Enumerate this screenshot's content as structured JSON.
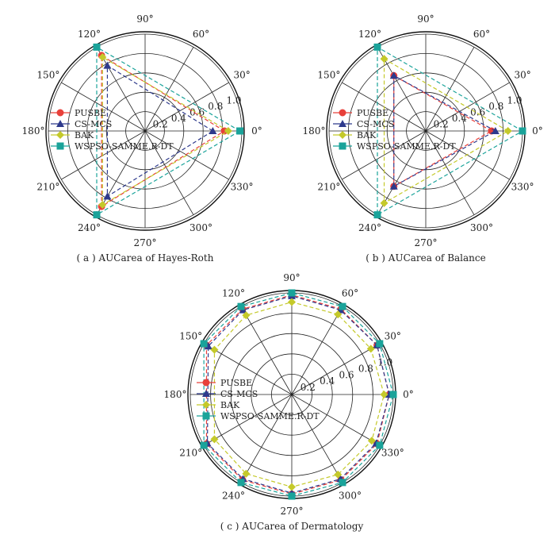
{
  "chart_data": [
    {
      "type": "radar",
      "caption": "( a ) AUCarea of Hayes-Roth",
      "angle_labels": [
        "0°",
        "30°",
        "60°",
        "90°",
        "120°",
        "150°",
        "180°",
        "210°",
        "240°",
        "270°",
        "300°",
        "330°"
      ],
      "radial_ticks": [
        "0.2",
        "0.4",
        "0.6",
        "0.8",
        "1.0"
      ],
      "rlim": [
        0,
        1.0
      ],
      "angles_deg": [
        0,
        120,
        240
      ],
      "grid": true,
      "legend_position": "left",
      "series": [
        {
          "name": "PUSBE",
          "values": [
            0.82,
            0.9,
            0.9
          ]
        },
        {
          "name": "CS-MCS",
          "values": [
            0.7,
            0.78,
            0.78
          ]
        },
        {
          "name": "BAK",
          "values": [
            0.86,
            0.88,
            0.88
          ]
        },
        {
          "name": "WSPSO-SAMME.R-DT",
          "values": [
            0.98,
            1.0,
            1.0
          ]
        }
      ]
    },
    {
      "type": "radar",
      "caption": "( b ) AUCarea of Balance",
      "angle_labels": [
        "0°",
        "30°",
        "60°",
        "90°",
        "120°",
        "150°",
        "180°",
        "210°",
        "240°",
        "270°",
        "300°",
        "330°"
      ],
      "radial_ticks": [
        "0.2",
        "0.4",
        "0.6",
        "0.8",
        "1.0"
      ],
      "rlim": [
        0,
        1.0
      ],
      "angles_deg": [
        0,
        120,
        240
      ],
      "grid": true,
      "legend_position": "left",
      "series": [
        {
          "name": "PUSBE",
          "values": [
            0.68,
            0.66,
            0.66
          ]
        },
        {
          "name": "CS-MCS",
          "values": [
            0.72,
            0.66,
            0.66
          ]
        },
        {
          "name": "BAK",
          "values": [
            0.85,
            0.86,
            0.86
          ]
        },
        {
          "name": "WSPSO-SAMME.R-DT",
          "values": [
            1.0,
            1.0,
            1.0
          ]
        }
      ]
    },
    {
      "type": "radar",
      "caption": "( c ) AUCarea of Dermatology",
      "angle_labels": [
        "0°",
        "30°",
        "60°",
        "90°",
        "120°",
        "150°",
        "180°",
        "210°",
        "240°",
        "270°",
        "300°",
        "330°"
      ],
      "radial_ticks": [
        "0.2",
        "0.4",
        "0.6",
        "0.8",
        "1.0"
      ],
      "rlim": [
        0,
        1.0
      ],
      "angles_deg": [
        0,
        30,
        60,
        90,
        120,
        150,
        210,
        240,
        270,
        300,
        330
      ],
      "grid": true,
      "legend_position": "left",
      "series": [
        {
          "name": "PUSBE",
          "values": [
            0.96,
            0.97,
            0.97,
            0.98,
            0.97,
            0.97,
            0.97,
            0.97,
            0.98,
            0.97,
            0.97
          ]
        },
        {
          "name": "CS-MCS",
          "values": [
            0.96,
            0.97,
            0.96,
            0.97,
            0.96,
            0.95,
            0.96,
            0.96,
            0.97,
            0.96,
            0.96
          ]
        },
        {
          "name": "BAK",
          "values": [
            0.91,
            0.9,
            0.91,
            0.91,
            0.9,
            0.88,
            0.88,
            0.9,
            0.91,
            0.91,
            0.91
          ]
        },
        {
          "name": "WSPSO-SAMME.R-DT",
          "values": [
            1.0,
            1.0,
            1.0,
            1.0,
            1.0,
            1.0,
            1.0,
            1.0,
            1.0,
            1.0,
            1.0
          ]
        }
      ]
    }
  ],
  "legend": {
    "entries": [
      {
        "name": "PUSBE",
        "color": "#e8403a",
        "marker": "circle"
      },
      {
        "name": "CS-MCS",
        "color": "#2e3a8c",
        "marker": "triangle"
      },
      {
        "name": "BAK",
        "color": "#c4c92a",
        "marker": "diamond"
      },
      {
        "name": "WSPSO-SAMME.R-DT",
        "color": "#1aa39a",
        "marker": "square"
      }
    ]
  }
}
